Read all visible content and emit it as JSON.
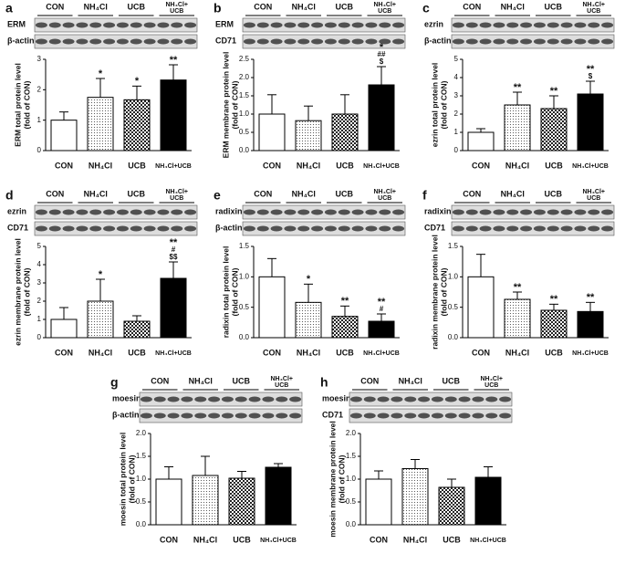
{
  "chart_data": [
    {
      "type": "bar",
      "panel": "a",
      "blot_rows": [
        "ERM",
        "β-actin"
      ],
      "blot_lanes": [
        [
          "CON"
        ],
        [
          "NH₄Cl"
        ],
        [
          "UCB"
        ],
        [
          "NH₄Cl+",
          "UCB"
        ]
      ],
      "ylabel": [
        "ERM total protein level",
        "(fold of CON)"
      ],
      "categories": [
        "CON",
        "NH₄Cl",
        "UCB",
        "NH₄Cl+UCB"
      ],
      "values": [
        1.0,
        1.75,
        1.67,
        2.32
      ],
      "errors": [
        0.27,
        0.62,
        0.45,
        0.5
      ],
      "annotations": [
        [],
        [
          "*"
        ],
        [
          "*"
        ],
        [
          "**"
        ]
      ],
      "fills": [
        "white",
        "dots",
        "checker",
        "black"
      ],
      "ylim": [
        0,
        3
      ],
      "yticks": [
        0,
        1,
        2,
        3
      ]
    },
    {
      "type": "bar",
      "panel": "b",
      "blot_rows": [
        "ERM",
        "CD71"
      ],
      "blot_lanes": [
        [
          "CON"
        ],
        [
          "NH₄Cl"
        ],
        [
          "UCB"
        ],
        [
          "NH₄Cl+",
          "UCB"
        ]
      ],
      "ylabel": [
        "ERM membrane protein level",
        "(fold of CON)"
      ],
      "categories": [
        "CON",
        "NH₄Cl",
        "UCB",
        "NH₄Cl+UCB"
      ],
      "values": [
        1.0,
        0.82,
        1.0,
        1.8
      ],
      "errors": [
        0.53,
        0.4,
        0.53,
        0.5
      ],
      "annotations": [
        [],
        [],
        [],
        [
          "*",
          "##",
          "$"
        ]
      ],
      "fills": [
        "white",
        "dots",
        "checker",
        "black"
      ],
      "ylim": [
        0,
        2.5
      ],
      "yticks": [
        {
          "value": 0,
          "label": "0.0"
        },
        0.5,
        {
          "value": 1,
          "label": "1.0"
        },
        1.5,
        {
          "value": 2,
          "label": "2.0"
        },
        2.5
      ]
    },
    {
      "type": "bar",
      "panel": "c",
      "blot_rows": [
        "ezrin",
        "β-actin"
      ],
      "blot_lanes": [
        [
          "CON"
        ],
        [
          "NH₄Cl"
        ],
        [
          "UCB"
        ],
        [
          "NH₄Cl+",
          "UCB"
        ]
      ],
      "ylabel": [
        "ezrin total protein level",
        "(fold of CON)"
      ],
      "categories": [
        "CON",
        "NH₄Cl",
        "UCB",
        "NH₄Cl+UCB"
      ],
      "values": [
        1.0,
        2.5,
        2.3,
        3.1
      ],
      "errors": [
        0.2,
        0.7,
        0.7,
        0.7
      ],
      "annotations": [
        [],
        [
          "**"
        ],
        [
          "**"
        ],
        [
          "**",
          "$"
        ]
      ],
      "fills": [
        "white",
        "dots",
        "checker",
        "black"
      ],
      "ylim": [
        0,
        5
      ],
      "yticks": [
        0,
        1,
        2,
        3,
        4,
        5
      ]
    },
    {
      "type": "bar",
      "panel": "d",
      "blot_rows": [
        "ezrin",
        "CD71"
      ],
      "blot_lanes": [
        [
          "CON"
        ],
        [
          "NH₄Cl"
        ],
        [
          "UCB"
        ],
        [
          "NH₄Cl+",
          "UCB"
        ]
      ],
      "ylabel": [
        "ezrin membrane protein level",
        "(fold of CON)"
      ],
      "categories": [
        "CON",
        "NH₄Cl",
        "UCB",
        "NH₄Cl+UCB"
      ],
      "values": [
        1.0,
        2.0,
        0.9,
        3.25
      ],
      "errors": [
        0.65,
        1.2,
        0.3,
        0.9
      ],
      "annotations": [
        [],
        [
          "*"
        ],
        [],
        [
          "**",
          "#",
          "$$"
        ]
      ],
      "fills": [
        "white",
        "dots",
        "checker",
        "black"
      ],
      "ylim": [
        0,
        5
      ],
      "yticks": [
        0,
        1,
        2,
        3,
        4,
        5
      ]
    },
    {
      "type": "bar",
      "panel": "e",
      "blot_rows": [
        "radixin",
        "β-actin"
      ],
      "blot_lanes": [
        [
          "CON"
        ],
        [
          "NH₄Cl"
        ],
        [
          "UCB"
        ],
        [
          "NH₄Cl+",
          "UCB"
        ]
      ],
      "ylabel": [
        "radixin total protein level",
        "(fold of CON)"
      ],
      "categories": [
        "CON",
        "NH₄Cl",
        "UCB",
        "NH₄Cl+UCB"
      ],
      "values": [
        1.0,
        0.58,
        0.35,
        0.27
      ],
      "errors": [
        0.3,
        0.3,
        0.17,
        0.12
      ],
      "annotations": [
        [],
        [
          "*"
        ],
        [
          "**"
        ],
        [
          "**",
          "#"
        ]
      ],
      "fills": [
        "white",
        "dots",
        "checker",
        "black"
      ],
      "ylim": [
        0,
        1.5
      ],
      "yticks": [
        {
          "value": 0,
          "label": "0.0"
        },
        0.5,
        {
          "value": 1,
          "label": "1.0"
        },
        1.5
      ]
    },
    {
      "type": "bar",
      "panel": "f",
      "blot_rows": [
        "radixin",
        "CD71"
      ],
      "blot_lanes": [
        [
          "CON"
        ],
        [
          "NH₄Cl"
        ],
        [
          "UCB"
        ],
        [
          "NH₄Cl+",
          "UCB"
        ]
      ],
      "ylabel": [
        "radixin membrane protein level",
        "(fold of CON)"
      ],
      "categories": [
        "CON",
        "NH₄Cl",
        "UCB",
        "NH₄Cl+UCB"
      ],
      "values": [
        1.0,
        0.63,
        0.45,
        0.43
      ],
      "errors": [
        0.37,
        0.12,
        0.1,
        0.15
      ],
      "annotations": [
        [],
        [
          "**"
        ],
        [
          "**"
        ],
        [
          "**"
        ]
      ],
      "fills": [
        "white",
        "dots",
        "checker",
        "black"
      ],
      "ylim": [
        0,
        1.5
      ],
      "yticks": [
        {
          "value": 0,
          "label": "0.0"
        },
        0.5,
        {
          "value": 1,
          "label": "1.0"
        },
        1.5
      ]
    },
    {
      "type": "bar",
      "panel": "g",
      "blot_rows": [
        "moesin",
        "β-actin"
      ],
      "blot_lanes": [
        [
          "CON"
        ],
        [
          "NH₄Cl"
        ],
        [
          "UCB"
        ],
        [
          "NH₄Cl+",
          "UCB"
        ]
      ],
      "ylabel": [
        "moesin total protein level",
        "(fold of CON)"
      ],
      "categories": [
        "CON",
        "NH₄Cl",
        "UCB",
        "NH₄Cl+UCB"
      ],
      "values": [
        1.0,
        1.08,
        1.02,
        1.26
      ],
      "errors": [
        0.27,
        0.42,
        0.15,
        0.08
      ],
      "annotations": [
        [],
        [],
        [],
        []
      ],
      "fills": [
        "white",
        "dots",
        "checker",
        "black"
      ],
      "ylim": [
        0,
        2
      ],
      "yticks": [
        {
          "value": 0,
          "label": "0.0"
        },
        0.5,
        {
          "value": 1,
          "label": "1.0"
        },
        1.5,
        {
          "value": 2,
          "label": "2.0"
        }
      ]
    },
    {
      "type": "bar",
      "panel": "h",
      "blot_rows": [
        "moesin",
        "CD71"
      ],
      "blot_lanes": [
        [
          "CON"
        ],
        [
          "NH₄Cl"
        ],
        [
          "UCB"
        ],
        [
          "NH₄Cl+",
          "UCB"
        ]
      ],
      "ylabel": [
        "moesin membrane protein level",
        "(fold of CON)"
      ],
      "categories": [
        "CON",
        "NH₄Cl",
        "UCB",
        "NH₄Cl+UCB"
      ],
      "values": [
        1.0,
        1.23,
        0.82,
        1.04
      ],
      "errors": [
        0.18,
        0.2,
        0.18,
        0.23
      ],
      "annotations": [
        [],
        [],
        [],
        []
      ],
      "fills": [
        "white",
        "dots",
        "checker",
        "black"
      ],
      "ylim": [
        0,
        2
      ],
      "yticks": [
        {
          "value": 0,
          "label": "0.0"
        },
        0.5,
        {
          "value": 1,
          "label": "1.0"
        },
        1.5,
        {
          "value": 2,
          "label": "2.0"
        }
      ]
    }
  ]
}
